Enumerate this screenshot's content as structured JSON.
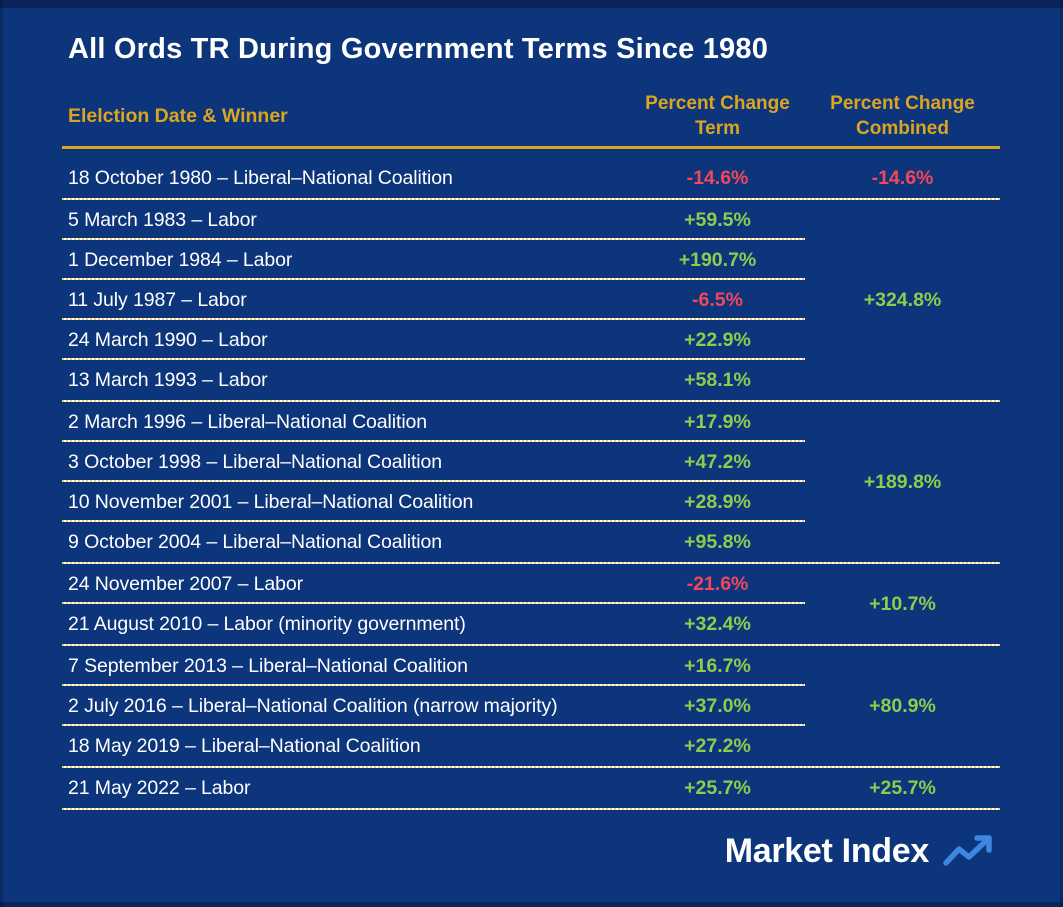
{
  "chart_data": {
    "type": "table",
    "title": "All Ords TR During Government Terms Since 1980",
    "columns": [
      "Elelction Date & Winner",
      "Percent Change Term",
      "Percent Change Combined"
    ],
    "groups": [
      {
        "combined": "-14.6%",
        "combined_sentiment": "negative",
        "rows": [
          {
            "label": "18 October 1980 – Liberal–National Coalition",
            "term": "-14.6%",
            "sentiment": "negative"
          }
        ]
      },
      {
        "combined": "+324.8%",
        "combined_sentiment": "positive",
        "rows": [
          {
            "label": "5 March 1983 – Labor",
            "term": "+59.5%",
            "sentiment": "positive"
          },
          {
            "label": "1 December 1984 – Labor",
            "term": "+190.7%",
            "sentiment": "positive"
          },
          {
            "label": "11 July 1987 – Labor",
            "term": "-6.5%",
            "sentiment": "negative"
          },
          {
            "label": "24 March 1990 – Labor",
            "term": "+22.9%",
            "sentiment": "positive"
          },
          {
            "label": "13 March 1993 – Labor",
            "term": "+58.1%",
            "sentiment": "positive"
          }
        ]
      },
      {
        "combined": "+189.8%",
        "combined_sentiment": "positive",
        "rows": [
          {
            "label": "2 March 1996 – Liberal–National Coalition",
            "term": "+17.9%",
            "sentiment": "positive"
          },
          {
            "label": "3 October 1998 – Liberal–National Coalition",
            "term": "+47.2%",
            "sentiment": "positive"
          },
          {
            "label": "10 November 2001 – Liberal–National Coalition",
            "term": "+28.9%",
            "sentiment": "positive"
          },
          {
            "label": "9 October 2004 – Liberal–National Coalition",
            "term": "+95.8%",
            "sentiment": "positive"
          }
        ]
      },
      {
        "combined": "+10.7%",
        "combined_sentiment": "positive",
        "rows": [
          {
            "label": "24 November 2007 – Labor",
            "term": "-21.6%",
            "sentiment": "negative"
          },
          {
            "label": "21 August 2010 – Labor (minority government)",
            "term": "+32.4%",
            "sentiment": "positive"
          }
        ]
      },
      {
        "combined": "+80.9%",
        "combined_sentiment": "positive",
        "rows": [
          {
            "label": "7 September 2013 – Liberal–National Coalition",
            "term": "+16.7%",
            "sentiment": "positive"
          },
          {
            "label": "2 July 2016 – Liberal–National Coalition (narrow majority)",
            "term": "+37.0%",
            "sentiment": "positive"
          },
          {
            "label": "18 May 2019 – Liberal–National Coalition",
            "term": "+27.2%",
            "sentiment": "positive"
          }
        ]
      },
      {
        "combined": "+25.7%",
        "combined_sentiment": "positive",
        "rows": [
          {
            "label": "21 May 2022 – Labor",
            "term": "+25.7%",
            "sentiment": "positive"
          }
        ]
      }
    ]
  },
  "footer": {
    "logo_text": "Market Index",
    "logo_icon": "trend-up-arrow"
  },
  "colors": {
    "background": "#0d357b",
    "gold": "#dba520",
    "text": "#ffffff",
    "positive": "#8ecc4d",
    "negative": "#f2475a",
    "divider_gold": "#eecf6f",
    "logo_blue": "#3e86df"
  }
}
